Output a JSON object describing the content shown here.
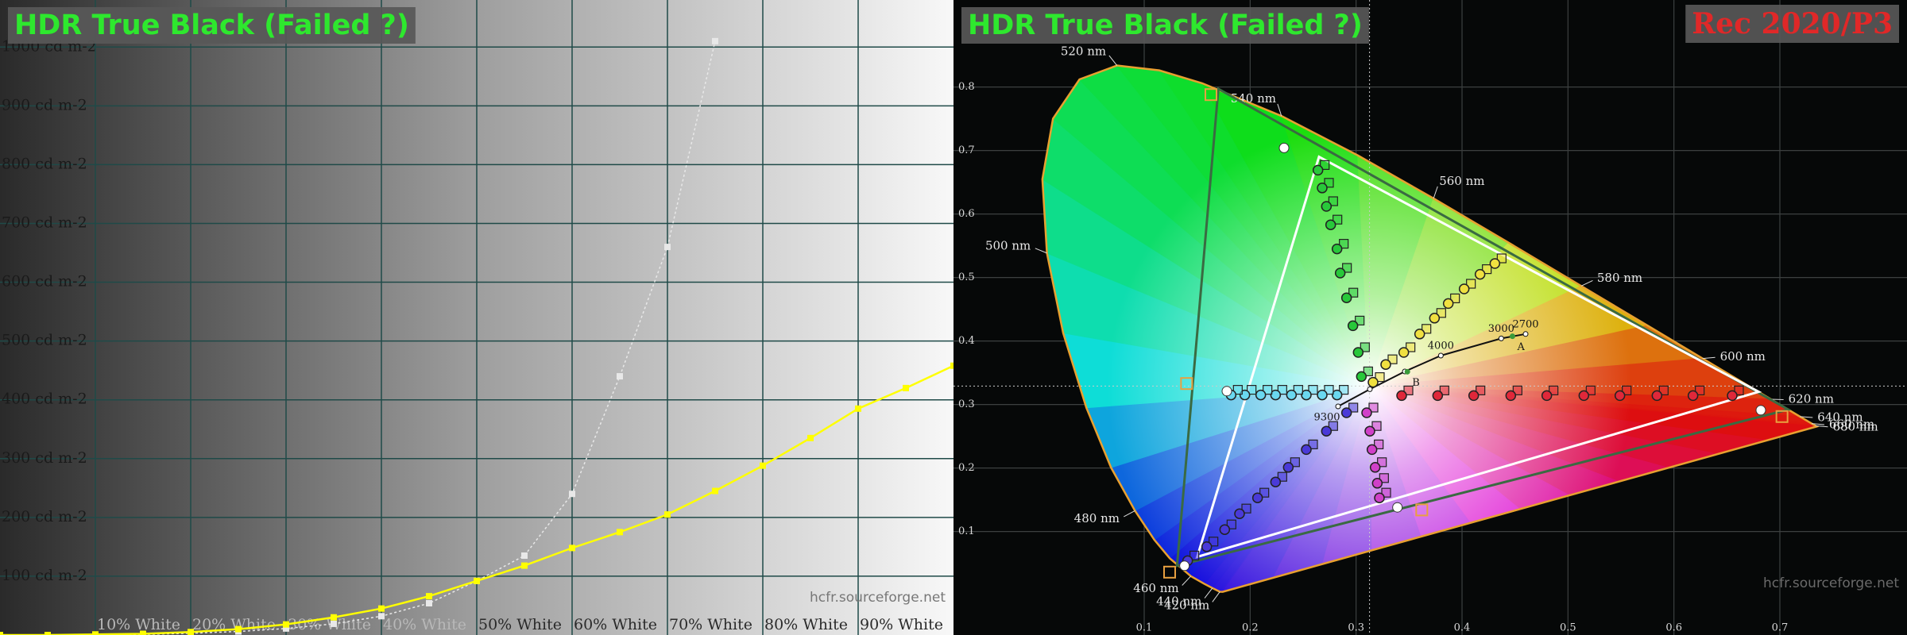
{
  "chart_data": [
    {
      "type": "line",
      "title": "HDR True Black (Failed ?)",
      "watermark": "hcfr.sourceforge.net",
      "xlim": [
        0,
        100
      ],
      "ylim": [
        0,
        1080
      ],
      "xticks": [
        {
          "value": 10,
          "label": "10% White"
        },
        {
          "value": 20,
          "label": "20% White"
        },
        {
          "value": 30,
          "label": "30% White"
        },
        {
          "value": 40,
          "label": "40% White"
        },
        {
          "value": 50,
          "label": "50% White"
        },
        {
          "value": 60,
          "label": "60% White"
        },
        {
          "value": 70,
          "label": "70% White"
        },
        {
          "value": 80,
          "label": "80% White"
        },
        {
          "value": 90,
          "label": "90% White"
        }
      ],
      "yticks": [
        {
          "value": 100,
          "label": "100 cd m-2"
        },
        {
          "value": 200,
          "label": "200 cd m-2"
        },
        {
          "value": 300,
          "label": "300 cd m-2"
        },
        {
          "value": 400,
          "label": "400 cd m-2"
        },
        {
          "value": 500,
          "label": "500 cd m-2"
        },
        {
          "value": 600,
          "label": "600 cd m-2"
        },
        {
          "value": 700,
          "label": "700 cd m-2"
        },
        {
          "value": 800,
          "label": "800 cd m-2"
        },
        {
          "value": 900,
          "label": "900 cd m-2"
        },
        {
          "value": 1000,
          "label": "1000 cd m-2"
        }
      ],
      "grid": true,
      "x": [
        0,
        5,
        10,
        15,
        20,
        25,
        30,
        35,
        40,
        45,
        50,
        55,
        60,
        65,
        70,
        75,
        80,
        85,
        90,
        95,
        100
      ],
      "series": [
        {
          "color": "#e8e8e8",
          "values": [
            0,
            0,
            0,
            1,
            3,
            6,
            11,
            19,
            32,
            54,
            92,
            135,
            240,
            440,
            660,
            1010,
            null,
            null,
            null,
            null,
            null
          ]
        },
        {
          "color": "#ffff00",
          "values": [
            0,
            0,
            1,
            2,
            5,
            10,
            18,
            30,
            45,
            66,
            92,
            118,
            148,
            175,
            205,
            245,
            288,
            335,
            385,
            420,
            458
          ]
        }
      ]
    },
    {
      "type": "cie",
      "title": "HDR True Black (Failed ?)",
      "subtitle": "Rec 2020/P3",
      "watermark": "hcfr.sourceforge.net",
      "xlim": [
        -0.08,
        0.82
      ],
      "ylim": [
        -0.063,
        0.937
      ],
      "xticks": [
        0.1,
        0.2,
        0.3,
        0.4,
        0.5,
        0.6,
        0.7
      ],
      "yticks": [
        0.1,
        0.2,
        0.3,
        0.4,
        0.5,
        0.6,
        0.7,
        0.8
      ],
      "grid": true,
      "locus": {
        "color": "#e8a030",
        "x": [
          0.1741,
          0.1714,
          0.1644,
          0.1566,
          0.144,
          0.1241,
          0.1096,
          0.0913,
          0.0687,
          0.0454,
          0.0235,
          0.0082,
          0.0039,
          0.0139,
          0.0389,
          0.0743,
          0.1142,
          0.1547,
          0.2296,
          0.3016,
          0.3731,
          0.4441,
          0.5125,
          0.5752,
          0.627,
          0.6915,
          0.719,
          0.73,
          0.7334,
          0.7347
        ],
        "y": [
          0.005,
          0.0051,
          0.0109,
          0.0177,
          0.0297,
          0.0578,
          0.0868,
          0.1327,
          0.2007,
          0.295,
          0.4127,
          0.5384,
          0.6548,
          0.7502,
          0.812,
          0.8338,
          0.8262,
          0.8059,
          0.7543,
          0.6923,
          0.6245,
          0.5547,
          0.4866,
          0.4242,
          0.3725,
          0.3083,
          0.2809,
          0.27,
          0.2666,
          0.2653
        ],
        "labels": [
          null,
          "420 nm",
          "440 nm",
          null,
          "460 nm",
          null,
          null,
          "480 nm",
          null,
          null,
          null,
          "500 nm",
          null,
          null,
          null,
          "520 nm",
          null,
          null,
          "540 nm",
          null,
          "560 nm",
          null,
          "580 nm",
          null,
          "600 nm",
          "620 nm",
          "640 nm",
          "660 nm",
          "680 nm",
          null
        ]
      },
      "white_point": {
        "x": 0.3127,
        "y": 0.329
      },
      "gamuts": [
        {
          "color": "#3a6a42",
          "x": [
            0.708,
            0.17,
            0.131
          ],
          "y": [
            0.292,
            0.797,
            0.046
          ]
        },
        {
          "color": "#ffffff",
          "x": [
            0.68,
            0.265,
            0.15
          ],
          "y": [
            0.32,
            0.69,
            0.06
          ]
        }
      ],
      "planckian": {
        "x": [
          0.283,
          0.313,
          0.346,
          0.38,
          0.437,
          0.46
        ],
        "y": [
          0.297,
          0.324,
          0.352,
          0.377,
          0.404,
          0.411
        ],
        "labels": [
          "9300",
          null,
          null,
          "4000",
          "3000",
          "2700"
        ]
      },
      "illuminants": {
        "x": [
          0.4476,
          0.3484
        ],
        "y": [
          0.4074,
          0.3516
        ],
        "labels": [
          "A",
          "B"
        ]
      },
      "series": [
        {
          "color": "#e0283a",
          "x": [
            0.343,
            0.377,
            0.411,
            0.446,
            0.48,
            0.515,
            0.549,
            0.584,
            0.618,
            0.655
          ],
          "y": [
            0.314,
            0.314,
            0.314,
            0.314,
            0.314,
            0.314,
            0.314,
            0.314,
            0.314,
            0.314
          ]
        },
        {
          "color": "#28c83a",
          "x": [
            0.305,
            0.302,
            0.297,
            0.291,
            0.285,
            0.282,
            0.276,
            0.272,
            0.268,
            0.264
          ],
          "y": [
            0.344,
            0.382,
            0.424,
            0.468,
            0.507,
            0.545,
            0.583,
            0.612,
            0.641,
            0.669
          ]
        },
        {
          "color": "#4a3ad8",
          "x": [
            0.291,
            0.272,
            0.253,
            0.236,
            0.224,
            0.207,
            0.19,
            0.176,
            0.159,
            0.141
          ],
          "y": [
            0.287,
            0.258,
            0.229,
            0.201,
            0.178,
            0.153,
            0.128,
            0.103,
            0.076,
            0.054
          ]
        },
        {
          "color": "#6ad8f0",
          "x": [
            0.282,
            0.268,
            0.253,
            0.239,
            0.224,
            0.21,
            0.195,
            0.182
          ],
          "y": [
            0.315,
            0.315,
            0.315,
            0.315,
            0.315,
            0.315,
            0.315,
            0.315
          ]
        },
        {
          "color": "#d040c8",
          "x": [
            0.31,
            0.313,
            0.315,
            0.318,
            0.32,
            0.322
          ],
          "y": [
            0.287,
            0.258,
            0.229,
            0.201,
            0.176,
            0.153
          ]
        },
        {
          "color": "#f0e040",
          "x": [
            0.316,
            0.328,
            0.345,
            0.36,
            0.374,
            0.387,
            0.402,
            0.417,
            0.431
          ],
          "y": [
            0.335,
            0.363,
            0.382,
            0.411,
            0.436,
            0.459,
            0.482,
            0.505,
            0.522
          ]
        }
      ],
      "targets": {
        "color": "#e8a040",
        "x": [
          0.163,
          0.14,
          0.362,
          0.702,
          0.124
        ],
        "y": [
          0.788,
          0.333,
          0.134,
          0.281,
          0.036
        ]
      },
      "references": {
        "color": "#ffffff",
        "x": [
          0.232,
          0.178,
          0.339,
          0.682,
          0.138
        ],
        "y": [
          0.704,
          0.321,
          0.138,
          0.291,
          0.046
        ]
      }
    }
  ]
}
